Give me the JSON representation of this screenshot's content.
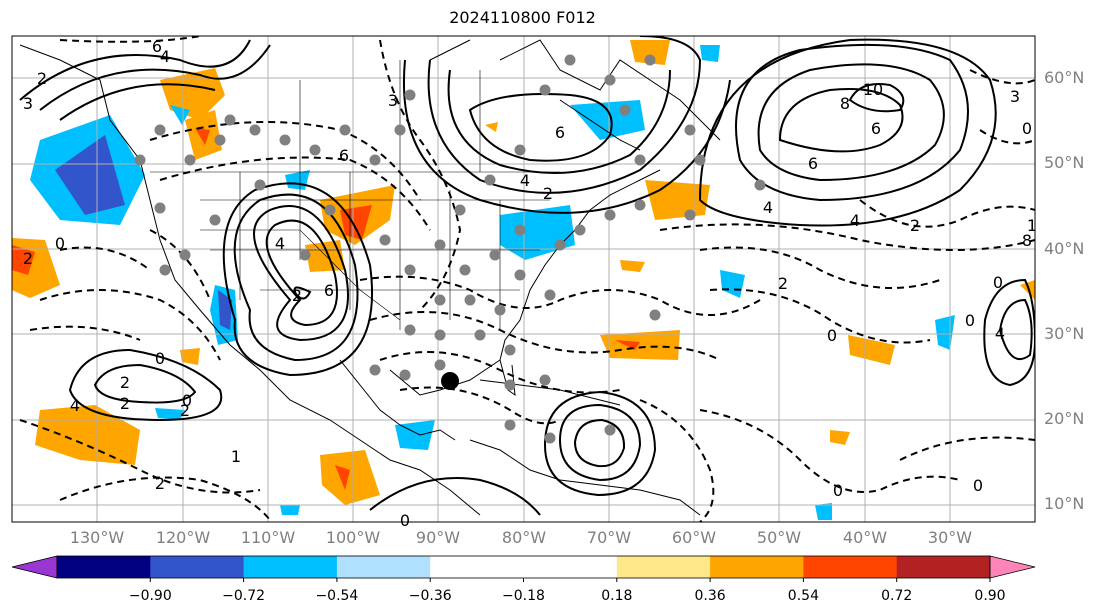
{
  "title": "2024110800 F012",
  "lat_labels": [
    "60°N",
    "50°N",
    "40°N",
    "30°N",
    "20°N",
    "10°N"
  ],
  "lon_labels": [
    "130°W",
    "120°W",
    "110°W",
    "100°W",
    "90°W",
    "80°W",
    "70°W",
    "60°W",
    "50°W",
    "40°W",
    "30°W"
  ],
  "contour_labels": [
    "6",
    "4",
    "3",
    "2",
    "6",
    "4",
    "10",
    "8",
    "6",
    "6",
    "4",
    "6",
    "4",
    "2",
    "8",
    "4",
    "2",
    "0",
    "3",
    "0",
    "2",
    "2",
    "0",
    "2",
    "0",
    "2",
    "4",
    "2",
    "1",
    "0",
    "2",
    "3",
    "6",
    "2",
    "0",
    "1",
    "0",
    "0",
    "4",
    "0",
    "0"
  ],
  "colorbar": {
    "colors": [
      "#9a37d3",
      "#000080",
      "#3355cc",
      "#00bfff",
      "#b0e0ff",
      "#ffffff",
      "#ffffff",
      "#ffe88a",
      "#ffa500",
      "#ff4500",
      "#b22222",
      "#ff85b8"
    ],
    "ticks": [
      "−0.90",
      "−0.72",
      "−0.54",
      "−0.36",
      "−0.18",
      "0.18",
      "0.36",
      "0.54",
      "0.72",
      "0.90"
    ]
  }
}
